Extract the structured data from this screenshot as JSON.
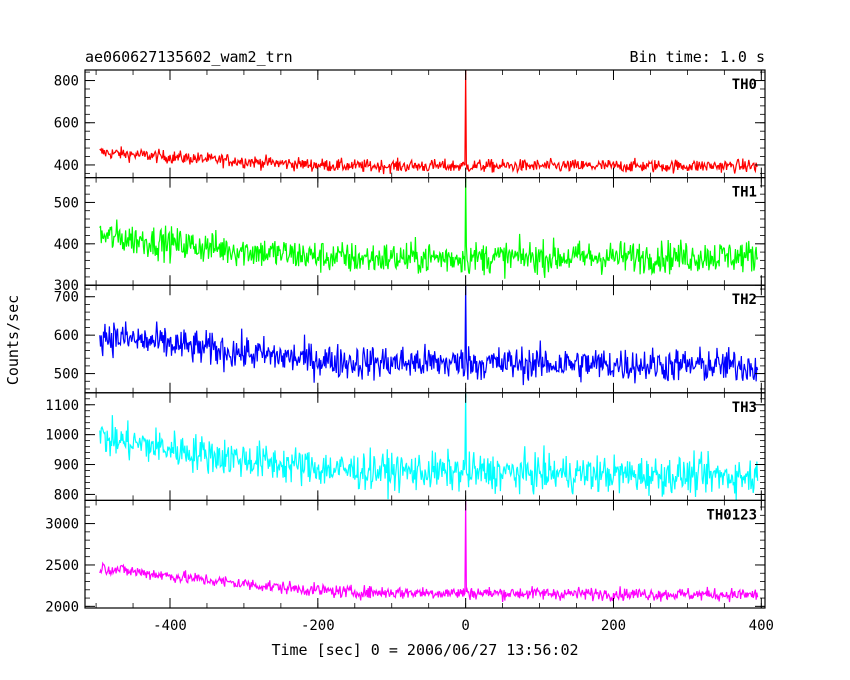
{
  "header": {
    "left_title": "ae060627135602_wam2_trn",
    "right_title": "Bin time: 1.0 s"
  },
  "chart_data": {
    "type": "line",
    "xlabel": "Time [sec] 0 = 2006/06/27 13:56:02",
    "ylabel": "Counts/sec",
    "xlim": [
      -515,
      405
    ],
    "xticks": [
      -400,
      -200,
      0,
      200,
      400
    ],
    "bin_time_s": 1.0,
    "panels": [
      {
        "name": "TH0",
        "color": "#ff0000",
        "ylim": [
          340,
          850
        ],
        "yticks": [
          400,
          600,
          800
        ],
        "start_level": 460,
        "mid_level": 395,
        "end_level": 395,
        "noise": 22,
        "spike_x": 0,
        "spike_peak": 850
      },
      {
        "name": "TH1",
        "color": "#00ff00",
        "ylim": [
          300,
          560
        ],
        "yticks": [
          300,
          400,
          500
        ],
        "start_level": 420,
        "mid_level": 365,
        "end_level": 370,
        "noise": 28,
        "spike_x": 0,
        "spike_peak": 560
      },
      {
        "name": "TH2",
        "color": "#0000ff",
        "ylim": [
          450,
          730
        ],
        "yticks": [
          500,
          600,
          700
        ],
        "start_level": 600,
        "mid_level": 530,
        "end_level": 520,
        "noise": 32,
        "spike_x": 0,
        "spike_peak": 730
      },
      {
        "name": "TH3",
        "color": "#00ffff",
        "ylim": [
          780,
          1140
        ],
        "yticks": [
          800,
          900,
          1000,
          1100
        ],
        "start_level": 990,
        "mid_level": 880,
        "end_level": 860,
        "noise": 45,
        "spike_x": 0,
        "spike_peak": 1140
      },
      {
        "name": "TH0123",
        "color": "#ff00ff",
        "ylim": [
          1980,
          3280
        ],
        "yticks": [
          2000,
          2500,
          3000
        ],
        "start_level": 2470,
        "mid_level": 2170,
        "end_level": 2140,
        "noise": 55,
        "spike_x": 0,
        "spike_peak": 3280
      }
    ]
  }
}
